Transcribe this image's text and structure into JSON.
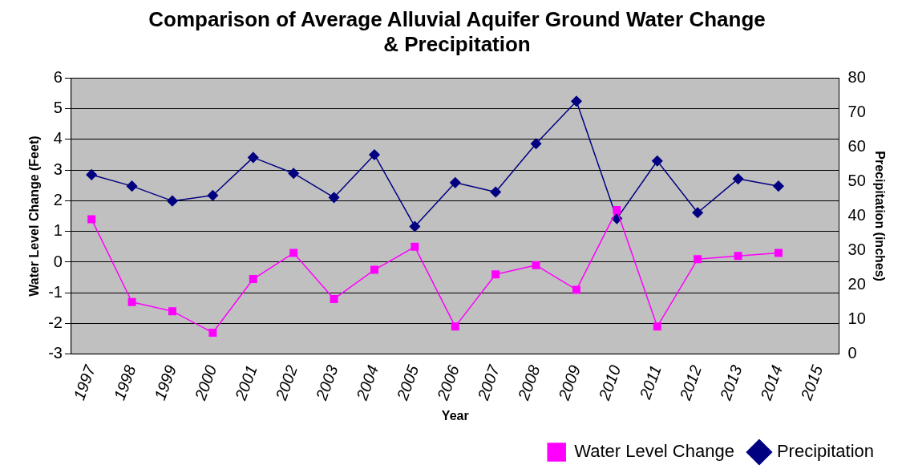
{
  "chart_data": {
    "type": "line",
    "title": "Comparison of Average Alluvial Aquifer Ground Water Change & Precipitation",
    "xlabel": "Year",
    "ylabel": "Water Level Change (Feet)",
    "y2label": "Precipitation (inches)",
    "categories": [
      "1997",
      "1998",
      "1999",
      "2000",
      "2001",
      "2002",
      "2003",
      "2004",
      "2005",
      "2006",
      "2007",
      "2008",
      "2009",
      "2010",
      "2011",
      "2012",
      "2013",
      "2014",
      "2015"
    ],
    "series": [
      {
        "name": "Water Level Change",
        "color": "#ff00ff",
        "marker": "square",
        "values": [
          1.4,
          -1.3,
          -1.6,
          -2.3,
          -0.55,
          0.3,
          -1.2,
          -0.25,
          0.5,
          -2.1,
          -0.4,
          -0.1,
          -0.9,
          1.7,
          -2.1,
          0.1,
          0.2,
          0.3,
          null
        ]
      },
      {
        "name": "Precipitation",
        "color": "#000080",
        "marker": "diamond",
        "axis": "y2",
        "values": [
          52,
          48.7,
          44.4,
          46,
          57,
          52.4,
          45.4,
          57.8,
          37,
          49.7,
          47,
          61,
          73.3,
          39.3,
          56,
          41,
          50.8,
          48.7,
          null
        ]
      }
    ],
    "ylim": [
      -3,
      6
    ],
    "yticks": [
      -3,
      -2,
      -1,
      0,
      1,
      2,
      3,
      4,
      5,
      6
    ],
    "y2lim": [
      0,
      80
    ],
    "y2ticks": [
      0,
      10,
      20,
      30,
      40,
      50,
      60,
      70,
      80
    ],
    "grid": "y",
    "legend": "bottom right"
  }
}
